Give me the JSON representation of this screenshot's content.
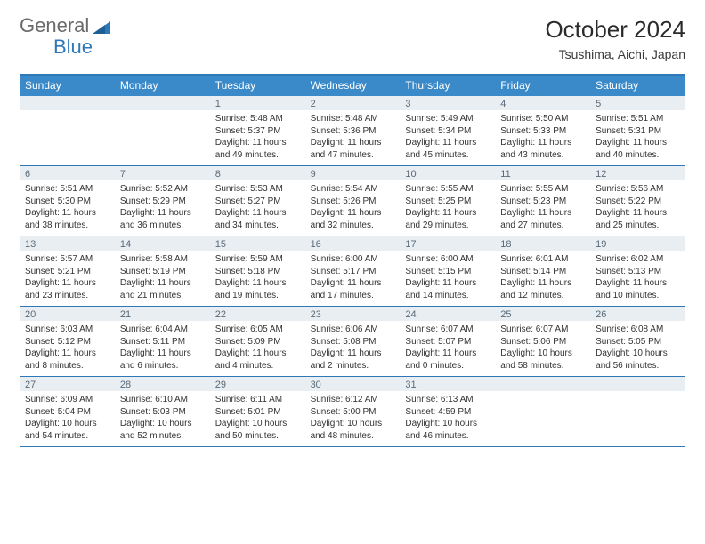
{
  "brand": {
    "part1": "General",
    "part2": "Blue"
  },
  "title": "October 2024",
  "location": "Tsushima, Aichi, Japan",
  "colors": {
    "header_bar": "#3a8ac9",
    "accent_line": "#2f78b7",
    "daynum_bg": "#e9eef2",
    "daynum_text": "#5a6a78",
    "body_text": "#333333",
    "logo_gray": "#6a6a6a",
    "logo_blue": "#2f78b7"
  },
  "day_names": [
    "Sunday",
    "Monday",
    "Tuesday",
    "Wednesday",
    "Thursday",
    "Friday",
    "Saturday"
  ],
  "weeks": [
    [
      {
        "n": "",
        "sr": "",
        "ss": "",
        "dl": ""
      },
      {
        "n": "",
        "sr": "",
        "ss": "",
        "dl": ""
      },
      {
        "n": "1",
        "sr": "Sunrise: 5:48 AM",
        "ss": "Sunset: 5:37 PM",
        "dl": "Daylight: 11 hours and 49 minutes."
      },
      {
        "n": "2",
        "sr": "Sunrise: 5:48 AM",
        "ss": "Sunset: 5:36 PM",
        "dl": "Daylight: 11 hours and 47 minutes."
      },
      {
        "n": "3",
        "sr": "Sunrise: 5:49 AM",
        "ss": "Sunset: 5:34 PM",
        "dl": "Daylight: 11 hours and 45 minutes."
      },
      {
        "n": "4",
        "sr": "Sunrise: 5:50 AM",
        "ss": "Sunset: 5:33 PM",
        "dl": "Daylight: 11 hours and 43 minutes."
      },
      {
        "n": "5",
        "sr": "Sunrise: 5:51 AM",
        "ss": "Sunset: 5:31 PM",
        "dl": "Daylight: 11 hours and 40 minutes."
      }
    ],
    [
      {
        "n": "6",
        "sr": "Sunrise: 5:51 AM",
        "ss": "Sunset: 5:30 PM",
        "dl": "Daylight: 11 hours and 38 minutes."
      },
      {
        "n": "7",
        "sr": "Sunrise: 5:52 AM",
        "ss": "Sunset: 5:29 PM",
        "dl": "Daylight: 11 hours and 36 minutes."
      },
      {
        "n": "8",
        "sr": "Sunrise: 5:53 AM",
        "ss": "Sunset: 5:27 PM",
        "dl": "Daylight: 11 hours and 34 minutes."
      },
      {
        "n": "9",
        "sr": "Sunrise: 5:54 AM",
        "ss": "Sunset: 5:26 PM",
        "dl": "Daylight: 11 hours and 32 minutes."
      },
      {
        "n": "10",
        "sr": "Sunrise: 5:55 AM",
        "ss": "Sunset: 5:25 PM",
        "dl": "Daylight: 11 hours and 29 minutes."
      },
      {
        "n": "11",
        "sr": "Sunrise: 5:55 AM",
        "ss": "Sunset: 5:23 PM",
        "dl": "Daylight: 11 hours and 27 minutes."
      },
      {
        "n": "12",
        "sr": "Sunrise: 5:56 AM",
        "ss": "Sunset: 5:22 PM",
        "dl": "Daylight: 11 hours and 25 minutes."
      }
    ],
    [
      {
        "n": "13",
        "sr": "Sunrise: 5:57 AM",
        "ss": "Sunset: 5:21 PM",
        "dl": "Daylight: 11 hours and 23 minutes."
      },
      {
        "n": "14",
        "sr": "Sunrise: 5:58 AM",
        "ss": "Sunset: 5:19 PM",
        "dl": "Daylight: 11 hours and 21 minutes."
      },
      {
        "n": "15",
        "sr": "Sunrise: 5:59 AM",
        "ss": "Sunset: 5:18 PM",
        "dl": "Daylight: 11 hours and 19 minutes."
      },
      {
        "n": "16",
        "sr": "Sunrise: 6:00 AM",
        "ss": "Sunset: 5:17 PM",
        "dl": "Daylight: 11 hours and 17 minutes."
      },
      {
        "n": "17",
        "sr": "Sunrise: 6:00 AM",
        "ss": "Sunset: 5:15 PM",
        "dl": "Daylight: 11 hours and 14 minutes."
      },
      {
        "n": "18",
        "sr": "Sunrise: 6:01 AM",
        "ss": "Sunset: 5:14 PM",
        "dl": "Daylight: 11 hours and 12 minutes."
      },
      {
        "n": "19",
        "sr": "Sunrise: 6:02 AM",
        "ss": "Sunset: 5:13 PM",
        "dl": "Daylight: 11 hours and 10 minutes."
      }
    ],
    [
      {
        "n": "20",
        "sr": "Sunrise: 6:03 AM",
        "ss": "Sunset: 5:12 PM",
        "dl": "Daylight: 11 hours and 8 minutes."
      },
      {
        "n": "21",
        "sr": "Sunrise: 6:04 AM",
        "ss": "Sunset: 5:11 PM",
        "dl": "Daylight: 11 hours and 6 minutes."
      },
      {
        "n": "22",
        "sr": "Sunrise: 6:05 AM",
        "ss": "Sunset: 5:09 PM",
        "dl": "Daylight: 11 hours and 4 minutes."
      },
      {
        "n": "23",
        "sr": "Sunrise: 6:06 AM",
        "ss": "Sunset: 5:08 PM",
        "dl": "Daylight: 11 hours and 2 minutes."
      },
      {
        "n": "24",
        "sr": "Sunrise: 6:07 AM",
        "ss": "Sunset: 5:07 PM",
        "dl": "Daylight: 11 hours and 0 minutes."
      },
      {
        "n": "25",
        "sr": "Sunrise: 6:07 AM",
        "ss": "Sunset: 5:06 PM",
        "dl": "Daylight: 10 hours and 58 minutes."
      },
      {
        "n": "26",
        "sr": "Sunrise: 6:08 AM",
        "ss": "Sunset: 5:05 PM",
        "dl": "Daylight: 10 hours and 56 minutes."
      }
    ],
    [
      {
        "n": "27",
        "sr": "Sunrise: 6:09 AM",
        "ss": "Sunset: 5:04 PM",
        "dl": "Daylight: 10 hours and 54 minutes."
      },
      {
        "n": "28",
        "sr": "Sunrise: 6:10 AM",
        "ss": "Sunset: 5:03 PM",
        "dl": "Daylight: 10 hours and 52 minutes."
      },
      {
        "n": "29",
        "sr": "Sunrise: 6:11 AM",
        "ss": "Sunset: 5:01 PM",
        "dl": "Daylight: 10 hours and 50 minutes."
      },
      {
        "n": "30",
        "sr": "Sunrise: 6:12 AM",
        "ss": "Sunset: 5:00 PM",
        "dl": "Daylight: 10 hours and 48 minutes."
      },
      {
        "n": "31",
        "sr": "Sunrise: 6:13 AM",
        "ss": "Sunset: 4:59 PM",
        "dl": "Daylight: 10 hours and 46 minutes."
      },
      {
        "n": "",
        "sr": "",
        "ss": "",
        "dl": ""
      },
      {
        "n": "",
        "sr": "",
        "ss": "",
        "dl": ""
      }
    ]
  ]
}
